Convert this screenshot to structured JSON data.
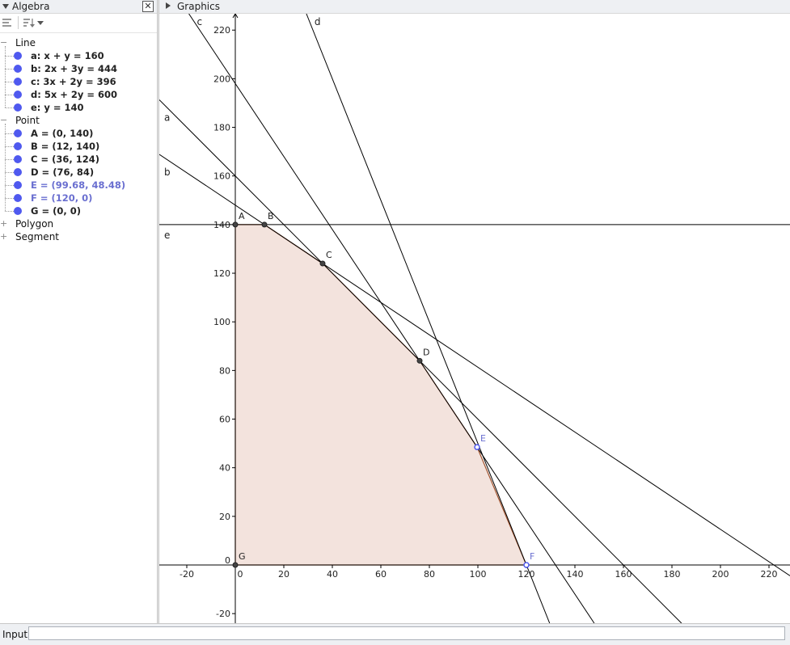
{
  "algebra": {
    "title": "Algebra",
    "categories": [
      {
        "label": "Line",
        "items": [
          {
            "label": "a: x + y = 160",
            "color": "#4f59ef",
            "highlight": false
          },
          {
            "label": "b: 2x + 3y = 444",
            "color": "#4f59ef",
            "highlight": false
          },
          {
            "label": "c: 3x + 2y = 396",
            "color": "#4f59ef",
            "highlight": false
          },
          {
            "label": "d: 5x + 2y = 600",
            "color": "#4f59ef",
            "highlight": false
          },
          {
            "label": "e: y = 140",
            "color": "#4f59ef",
            "highlight": false
          }
        ]
      },
      {
        "label": "Point",
        "items": [
          {
            "label": "A = (0, 140)",
            "color": "#4f59ef",
            "highlight": false
          },
          {
            "label": "B = (12, 140)",
            "color": "#4f59ef",
            "highlight": false
          },
          {
            "label": "C = (36, 124)",
            "color": "#4f59ef",
            "highlight": false
          },
          {
            "label": "D = (76, 84)",
            "color": "#4f59ef",
            "highlight": false
          },
          {
            "label": "E = (99.68, 48.48)",
            "color": "#4f59ef",
            "highlight": true
          },
          {
            "label": "F = (120, 0)",
            "color": "#4f59ef",
            "highlight": true
          },
          {
            "label": "G = (0, 0)",
            "color": "#4f59ef",
            "highlight": false
          }
        ]
      },
      {
        "label": "Polygon",
        "items": []
      },
      {
        "label": "Segment",
        "items": []
      }
    ]
  },
  "graphics": {
    "title": "Graphics",
    "x_ticks": [
      -20,
      0,
      20,
      40,
      60,
      80,
      100,
      120,
      140,
      160,
      180,
      200,
      220
    ],
    "y_ticks": [
      -20,
      0,
      20,
      40,
      60,
      80,
      100,
      120,
      140,
      160,
      180,
      200,
      220
    ],
    "lines": [
      {
        "name": "a",
        "eq": [
          1,
          1,
          160
        ]
      },
      {
        "name": "b",
        "eq": [
          2,
          3,
          444
        ]
      },
      {
        "name": "c",
        "eq": [
          3,
          2,
          396
        ]
      },
      {
        "name": "d",
        "eq": [
          5,
          2,
          600
        ]
      },
      {
        "name": "e",
        "eq": [
          0,
          1,
          140
        ]
      }
    ],
    "points": [
      {
        "name": "A",
        "x": 0,
        "y": 140,
        "style": "dark"
      },
      {
        "name": "B",
        "x": 12,
        "y": 140,
        "style": "dark"
      },
      {
        "name": "C",
        "x": 36,
        "y": 124,
        "style": "dark"
      },
      {
        "name": "D",
        "x": 76,
        "y": 84,
        "style": "dark"
      },
      {
        "name": "E",
        "x": 99.68,
        "y": 48.48,
        "style": "free"
      },
      {
        "name": "F",
        "x": 120,
        "y": 0,
        "style": "free"
      },
      {
        "name": "G",
        "x": 0,
        "y": 0,
        "style": "dark"
      }
    ],
    "polygon": [
      "A",
      "B",
      "C",
      "D",
      "E",
      "F",
      "G"
    ],
    "colors": {
      "polygon_fill": "#f3e3dd",
      "polygon_edge": "#a0522d",
      "point_dark": "#444444",
      "point_free": "#4f59ef",
      "free_label": "#6a6fd0"
    }
  },
  "input": {
    "label": "Input:",
    "value": ""
  }
}
